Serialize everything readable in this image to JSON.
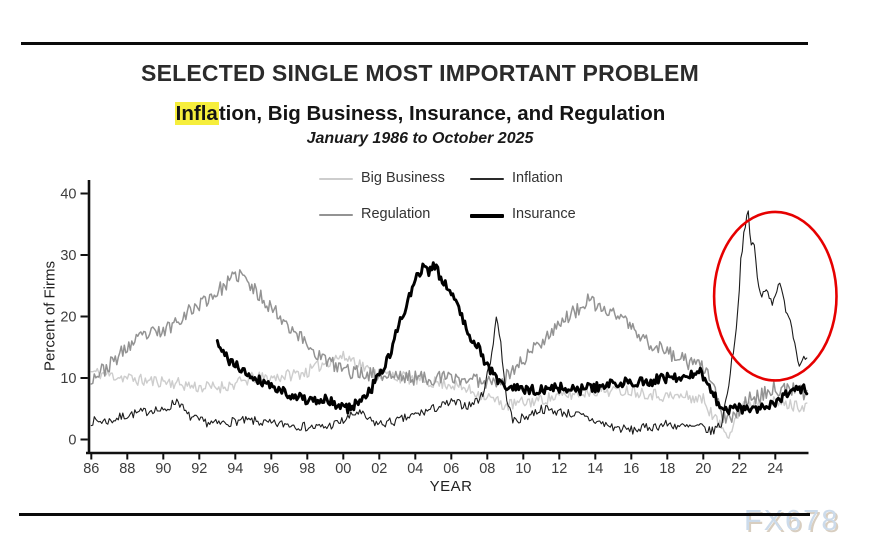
{
  "page": {
    "background": "#ffffff"
  },
  "header": {
    "title": "SELECTED SINGLE MOST IMPORTANT PROBLEM",
    "subtitle_highlight": "Infla",
    "subtitle_rest": "tion, Big Business, Insurance, and Regulation",
    "date_range": "January 1986 to October 2025",
    "highlight_color": "#f6ee3c"
  },
  "legend": {
    "items": [
      {
        "label": "Big Business",
        "color": "#cdcdcd",
        "thickness": 2
      },
      {
        "label": "Inflation",
        "color": "#2a2a2a",
        "thickness": 2
      },
      {
        "label": "Regulation",
        "color": "#939393",
        "thickness": 2
      },
      {
        "label": "Insurance",
        "color": "#000000",
        "thickness": 4
      }
    ]
  },
  "chart_data": {
    "type": "line",
    "title": "SELECTED SINGLE MOST IMPORTANT PROBLEM",
    "subtitle": "Inflation, Big Business, Insurance, and Regulation",
    "period": "January 1986 to October 2025",
    "xlabel": "YEAR",
    "ylabel": "Percent of Firms",
    "x_range": [
      1986,
      2025.83
    ],
    "ylim": [
      0,
      40
    ],
    "y_ticks": [
      0,
      10,
      20,
      30,
      40
    ],
    "x_tick_labels": [
      "86",
      "88",
      "90",
      "92",
      "94",
      "96",
      "98",
      "00",
      "02",
      "04",
      "06",
      "08",
      "10",
      "12",
      "14",
      "16",
      "18",
      "20",
      "22",
      "24"
    ],
    "x_tick_step_years": 2,
    "grid": false,
    "legend_position": "top-center",
    "axis_color": "#111111",
    "tick_label_color": "#3d3d3d",
    "series": [
      {
        "name": "Big Business",
        "color": "#cdcdcd",
        "width": 1.4,
        "noise": 1.0,
        "seed": 11,
        "anchors": [
          [
            1986,
            11
          ],
          [
            1987,
            10.5
          ],
          [
            1988,
            10
          ],
          [
            1989,
            9.5
          ],
          [
            1990,
            9.5
          ],
          [
            1991,
            9
          ],
          [
            1992,
            8.5
          ],
          [
            1993,
            8.5
          ],
          [
            1994,
            9
          ],
          [
            1995,
            10
          ],
          [
            1996,
            10
          ],
          [
            1997,
            10.5
          ],
          [
            1998,
            11
          ],
          [
            1999,
            12.5
          ],
          [
            1999.8,
            13.5
          ],
          [
            2000.6,
            13
          ],
          [
            2001.5,
            11
          ],
          [
            2002.5,
            10.5
          ],
          [
            2003.5,
            10
          ],
          [
            2004.5,
            9.5
          ],
          [
            2006,
            9
          ],
          [
            2007,
            8
          ],
          [
            2008,
            7
          ],
          [
            2009,
            5.5
          ],
          [
            2010,
            6
          ],
          [
            2011,
            6.5
          ],
          [
            2012,
            7
          ],
          [
            2013,
            7.5
          ],
          [
            2014,
            8
          ],
          [
            2016,
            8
          ],
          [
            2017,
            7.5
          ],
          [
            2018,
            7
          ],
          [
            2019,
            7
          ],
          [
            2020,
            6.5
          ],
          [
            2020.5,
            4
          ],
          [
            2021,
            2
          ],
          [
            2021.4,
            1
          ],
          [
            2021.8,
            3.5
          ],
          [
            2022.3,
            5.5
          ],
          [
            2023,
            6
          ],
          [
            2024,
            6
          ],
          [
            2025,
            5.5
          ],
          [
            2025.83,
            5.5
          ]
        ]
      },
      {
        "name": "Regulation",
        "color": "#939393",
        "width": 1.5,
        "noise": 1.2,
        "seed": 23,
        "anchors": [
          [
            1986,
            10
          ],
          [
            1987,
            12
          ],
          [
            1988,
            15
          ],
          [
            1989,
            17
          ],
          [
            1990,
            17.5
          ],
          [
            1991,
            20
          ],
          [
            1992,
            22
          ],
          [
            1993,
            24
          ],
          [
            1993.8,
            26
          ],
          [
            1994.3,
            27
          ],
          [
            1994.8,
            25
          ],
          [
            1995.5,
            23
          ],
          [
            1996.5,
            20
          ],
          [
            1997.5,
            17
          ],
          [
            1998.5,
            14
          ],
          [
            1999.5,
            12
          ],
          [
            2000.5,
            11
          ],
          [
            2002,
            10.5
          ],
          [
            2004,
            10
          ],
          [
            2006,
            10
          ],
          [
            2008,
            9.5
          ],
          [
            2009,
            10
          ],
          [
            2010,
            13
          ],
          [
            2011,
            16
          ],
          [
            2012,
            19
          ],
          [
            2013,
            21
          ],
          [
            2013.6,
            22.5
          ],
          [
            2014.5,
            21
          ],
          [
            2015.5,
            20
          ],
          [
            2016.5,
            16.5
          ],
          [
            2017.5,
            15
          ],
          [
            2018.5,
            13.5
          ],
          [
            2019.5,
            12
          ],
          [
            2020.2,
            11.5
          ],
          [
            2020.7,
            7
          ],
          [
            2021.1,
            3.5
          ],
          [
            2021.6,
            3
          ],
          [
            2022,
            5
          ],
          [
            2022.5,
            6.5
          ],
          [
            2023,
            7
          ],
          [
            2023.5,
            7.5
          ],
          [
            2024,
            8.5
          ],
          [
            2024.5,
            8
          ],
          [
            2025,
            8
          ],
          [
            2025.83,
            7.5
          ]
        ]
      },
      {
        "name": "Inflation",
        "color": "#1c1c1c",
        "width": 1.1,
        "noise": 0.75,
        "seed": 7,
        "anchors": [
          [
            1986,
            3
          ],
          [
            1987,
            3
          ],
          [
            1988,
            4
          ],
          [
            1989,
            4.5
          ],
          [
            1989.5,
            5
          ],
          [
            1990,
            4.5
          ],
          [
            1990.8,
            6.5
          ],
          [
            1991.3,
            4
          ],
          [
            1992,
            3
          ],
          [
            1993,
            2.5
          ],
          [
            1994,
            3
          ],
          [
            1995,
            3
          ],
          [
            1996,
            2.5
          ],
          [
            1997,
            2.5
          ],
          [
            1998,
            2
          ],
          [
            1999,
            2
          ],
          [
            2000,
            3
          ],
          [
            2000.8,
            4.5
          ],
          [
            2001.5,
            3
          ],
          [
            2002,
            2.5
          ],
          [
            2003,
            3
          ],
          [
            2004,
            4
          ],
          [
            2005,
            5
          ],
          [
            2006,
            6
          ],
          [
            2007,
            5.5
          ],
          [
            2007.7,
            7
          ],
          [
            2008.2,
            13
          ],
          [
            2008.5,
            20
          ],
          [
            2008.7,
            17
          ],
          [
            2009,
            8
          ],
          [
            2009.4,
            3
          ],
          [
            2010,
            3.5
          ],
          [
            2011,
            5
          ],
          [
            2012,
            4.5
          ],
          [
            2013,
            4
          ],
          [
            2014,
            3
          ],
          [
            2015,
            2
          ],
          [
            2016,
            1.5
          ],
          [
            2017,
            2
          ],
          [
            2018,
            2.5
          ],
          [
            2019,
            2
          ],
          [
            2020,
            2
          ],
          [
            2020.4,
            1.2
          ],
          [
            2021,
            2.5
          ],
          [
            2021.3,
            7
          ],
          [
            2021.6,
            13
          ],
          [
            2021.9,
            20
          ],
          [
            2022.1,
            30
          ],
          [
            2022.3,
            34
          ],
          [
            2022.5,
            37
          ],
          [
            2022.65,
            31
          ],
          [
            2022.8,
            33
          ],
          [
            2023,
            26
          ],
          [
            2023.2,
            23
          ],
          [
            2023.5,
            25
          ],
          [
            2023.8,
            22
          ],
          [
            2024,
            24
          ],
          [
            2024.3,
            25
          ],
          [
            2024.5,
            22
          ],
          [
            2024.8,
            20
          ],
          [
            2025,
            17
          ],
          [
            2025.2,
            14
          ],
          [
            2025.4,
            12
          ],
          [
            2025.6,
            14
          ],
          [
            2025.83,
            13
          ]
        ]
      },
      {
        "name": "Insurance",
        "color": "#000000",
        "width": 2.9,
        "noise": 0.85,
        "seed": 41,
        "anchors": [
          [
            1993,
            15.5
          ],
          [
            1993.3,
            14
          ],
          [
            1993.8,
            12.5
          ],
          [
            1994.5,
            11
          ],
          [
            1995.5,
            9.5
          ],
          [
            1996.5,
            8
          ],
          [
            1997.5,
            7
          ],
          [
            1998.3,
            6
          ],
          [
            1999,
            6.5
          ],
          [
            1999.7,
            5.5
          ],
          [
            2000.3,
            5
          ],
          [
            2000.8,
            6
          ],
          [
            2001.5,
            8
          ],
          [
            2002,
            10.5
          ],
          [
            2002.5,
            13
          ],
          [
            2003,
            18
          ],
          [
            2003.4,
            21
          ],
          [
            2003.8,
            24
          ],
          [
            2004.1,
            26.5
          ],
          [
            2004.4,
            28
          ],
          [
            2004.7,
            27
          ],
          [
            2005,
            28.5
          ],
          [
            2005.3,
            27
          ],
          [
            2005.7,
            25.5
          ],
          [
            2006,
            23.5
          ],
          [
            2006.5,
            21
          ],
          [
            2007,
            17
          ],
          [
            2007.5,
            15
          ],
          [
            2008,
            12
          ],
          [
            2008.5,
            10
          ],
          [
            2009,
            8.5
          ],
          [
            2010,
            8
          ],
          [
            2011,
            8
          ],
          [
            2012,
            8.5
          ],
          [
            2013,
            8
          ],
          [
            2014,
            8.5
          ],
          [
            2015,
            9
          ],
          [
            2016,
            9.5
          ],
          [
            2017,
            9.5
          ],
          [
            2018,
            10
          ],
          [
            2019,
            10
          ],
          [
            2019.8,
            11
          ],
          [
            2020.3,
            9
          ],
          [
            2020.8,
            6
          ],
          [
            2021.2,
            5
          ],
          [
            2022,
            5
          ],
          [
            2022.7,
            4.5
          ],
          [
            2023.3,
            5.5
          ],
          [
            2024,
            6
          ],
          [
            2024.5,
            7
          ],
          [
            2025,
            7.5
          ],
          [
            2025.5,
            8.5
          ],
          [
            2025.83,
            8
          ]
        ]
      }
    ],
    "annotation": {
      "type": "ellipse",
      "label": "inflation spike circled",
      "color": "#e60000",
      "stroke_width": 2.6,
      "center_year": 2024.0,
      "center_value": 23.3,
      "radius_years": 3.4,
      "radius_values": 13.7
    }
  },
  "watermark": {
    "text": "FX678",
    "color": "#ccdbeb",
    "shadow_color": "#d8cec0"
  }
}
